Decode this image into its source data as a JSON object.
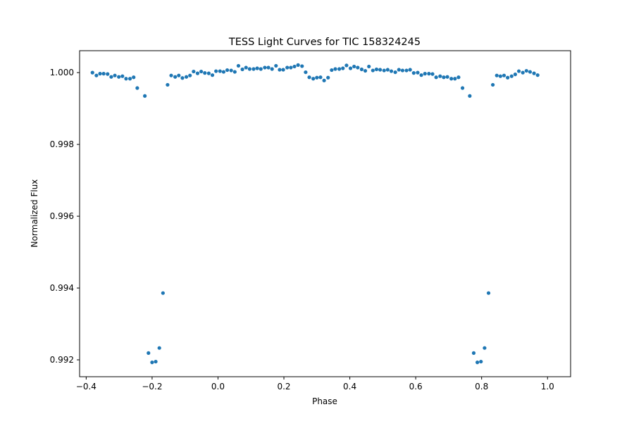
{
  "chart_data": {
    "type": "scatter",
    "title": "TESS Light Curves for TIC 158324245",
    "xlabel": "Phase",
    "ylabel": "Normalized Flux",
    "xlim": [
      -0.42,
      1.07
    ],
    "ylim": [
      0.99153,
      1.00061
    ],
    "xticks": [
      {
        "value": -0.4,
        "label": "−0.4"
      },
      {
        "value": -0.2,
        "label": "−0.2"
      },
      {
        "value": 0.0,
        "label": "0.0"
      },
      {
        "value": 0.2,
        "label": "0.2"
      },
      {
        "value": 0.4,
        "label": "0.4"
      },
      {
        "value": 0.6,
        "label": "0.6"
      },
      {
        "value": 0.8,
        "label": "0.8"
      },
      {
        "value": 1.0,
        "label": "1.0"
      }
    ],
    "yticks": [
      {
        "value": 0.992,
        "label": "0.992"
      },
      {
        "value": 0.994,
        "label": "0.994"
      },
      {
        "value": 0.996,
        "label": "0.996"
      },
      {
        "value": 0.998,
        "label": "0.998"
      },
      {
        "value": 1.0,
        "label": "1.000"
      }
    ],
    "grid": false,
    "legend": false,
    "colors": {
      "points": "#1f77b4",
      "axes": "#000000",
      "background": "#ffffff"
    },
    "points": [
      [
        -0.381,
        1.0
      ],
      [
        -0.369,
        0.99992
      ],
      [
        -0.358,
        0.99997
      ],
      [
        -0.347,
        0.99997
      ],
      [
        -0.335,
        0.99996
      ],
      [
        -0.324,
        0.99988
      ],
      [
        -0.313,
        0.99992
      ],
      [
        -0.301,
        0.99988
      ],
      [
        -0.29,
        0.9999
      ],
      [
        -0.279,
        0.99983
      ],
      [
        -0.267,
        0.99983
      ],
      [
        -0.256,
        0.99987
      ],
      [
        -0.245,
        0.99957
      ],
      [
        -0.222,
        0.99935
      ],
      [
        -0.211,
        0.99219
      ],
      [
        -0.2,
        0.99193
      ],
      [
        -0.189,
        0.99195
      ],
      [
        -0.178,
        0.99233
      ],
      [
        -0.167,
        0.99386
      ],
      [
        -0.153,
        0.99966
      ],
      [
        -0.142,
        0.99992
      ],
      [
        -0.13,
        0.99988
      ],
      [
        -0.119,
        0.99992
      ],
      [
        -0.108,
        0.99985
      ],
      [
        -0.096,
        0.99988
      ],
      [
        -0.085,
        0.99992
      ],
      [
        -0.074,
        1.00003
      ],
      [
        -0.062,
        0.99998
      ],
      [
        -0.051,
        1.00003
      ],
      [
        -0.04,
        0.99999
      ],
      [
        -0.028,
        0.99998
      ],
      [
        -0.017,
        0.99993
      ],
      [
        -0.006,
        1.00004
      ],
      [
        0.006,
        1.00004
      ],
      [
        0.017,
        1.00002
      ],
      [
        0.028,
        1.00007
      ],
      [
        0.04,
        1.00006
      ],
      [
        0.051,
        1.00002
      ],
      [
        0.062,
        1.00019
      ],
      [
        0.074,
        1.00009
      ],
      [
        0.085,
        1.00014
      ],
      [
        0.096,
        1.0001
      ],
      [
        0.108,
        1.0001
      ],
      [
        0.119,
        1.00012
      ],
      [
        0.13,
        1.0001
      ],
      [
        0.142,
        1.00014
      ],
      [
        0.153,
        1.00014
      ],
      [
        0.164,
        1.0001
      ],
      [
        0.176,
        1.00019
      ],
      [
        0.187,
        1.00008
      ],
      [
        0.198,
        1.00008
      ],
      [
        0.21,
        1.00014
      ],
      [
        0.221,
        1.00014
      ],
      [
        0.232,
        1.00017
      ],
      [
        0.243,
        1.00021
      ],
      [
        0.255,
        1.00018
      ],
      [
        0.266,
        1.00001
      ],
      [
        0.277,
        0.99987
      ],
      [
        0.289,
        0.99983
      ],
      [
        0.3,
        0.99986
      ],
      [
        0.311,
        0.99987
      ],
      [
        0.322,
        0.99978
      ],
      [
        0.334,
        0.99986
      ],
      [
        0.345,
        1.00007
      ],
      [
        0.356,
        1.0001
      ],
      [
        0.368,
        1.0001
      ],
      [
        0.379,
        1.00012
      ],
      [
        0.39,
        1.0002
      ],
      [
        0.402,
        1.00012
      ],
      [
        0.413,
        1.00017
      ],
      [
        0.424,
        1.00014
      ],
      [
        0.436,
        1.00009
      ],
      [
        0.447,
        1.00005
      ],
      [
        0.458,
        1.00017
      ],
      [
        0.47,
        1.00006
      ],
      [
        0.481,
        1.00009
      ],
      [
        0.492,
        1.00008
      ],
      [
        0.504,
        1.00006
      ],
      [
        0.515,
        1.00008
      ],
      [
        0.526,
        1.00004
      ],
      [
        0.538,
        1.00001
      ],
      [
        0.549,
        1.00008
      ],
      [
        0.56,
        1.00006
      ],
      [
        0.572,
        1.00006
      ],
      [
        0.583,
        1.00008
      ],
      [
        0.594,
        0.99999
      ],
      [
        0.606,
        1.0
      ],
      [
        0.617,
        0.99993
      ],
      [
        0.628,
        0.99997
      ],
      [
        0.64,
        0.99997
      ],
      [
        0.651,
        0.99996
      ],
      [
        0.662,
        0.99987
      ],
      [
        0.674,
        0.9999
      ],
      [
        0.685,
        0.99987
      ],
      [
        0.696,
        0.99988
      ],
      [
        0.708,
        0.99983
      ],
      [
        0.719,
        0.99983
      ],
      [
        0.73,
        0.99987
      ],
      [
        0.742,
        0.99957
      ],
      [
        0.764,
        0.99935
      ],
      [
        0.776,
        0.99219
      ],
      [
        0.787,
        0.99193
      ],
      [
        0.798,
        0.99195
      ],
      [
        0.809,
        0.99233
      ],
      [
        0.821,
        0.99386
      ],
      [
        0.834,
        0.99966
      ],
      [
        0.846,
        0.99992
      ],
      [
        0.857,
        0.9999
      ],
      [
        0.868,
        0.99992
      ],
      [
        0.879,
        0.99986
      ],
      [
        0.891,
        0.9999
      ],
      [
        0.902,
        0.99995
      ],
      [
        0.913,
        1.00004
      ],
      [
        0.925,
        1.0
      ],
      [
        0.936,
        1.00005
      ],
      [
        0.947,
        1.00002
      ],
      [
        0.959,
        0.99998
      ],
      [
        0.97,
        0.99993
      ]
    ]
  }
}
